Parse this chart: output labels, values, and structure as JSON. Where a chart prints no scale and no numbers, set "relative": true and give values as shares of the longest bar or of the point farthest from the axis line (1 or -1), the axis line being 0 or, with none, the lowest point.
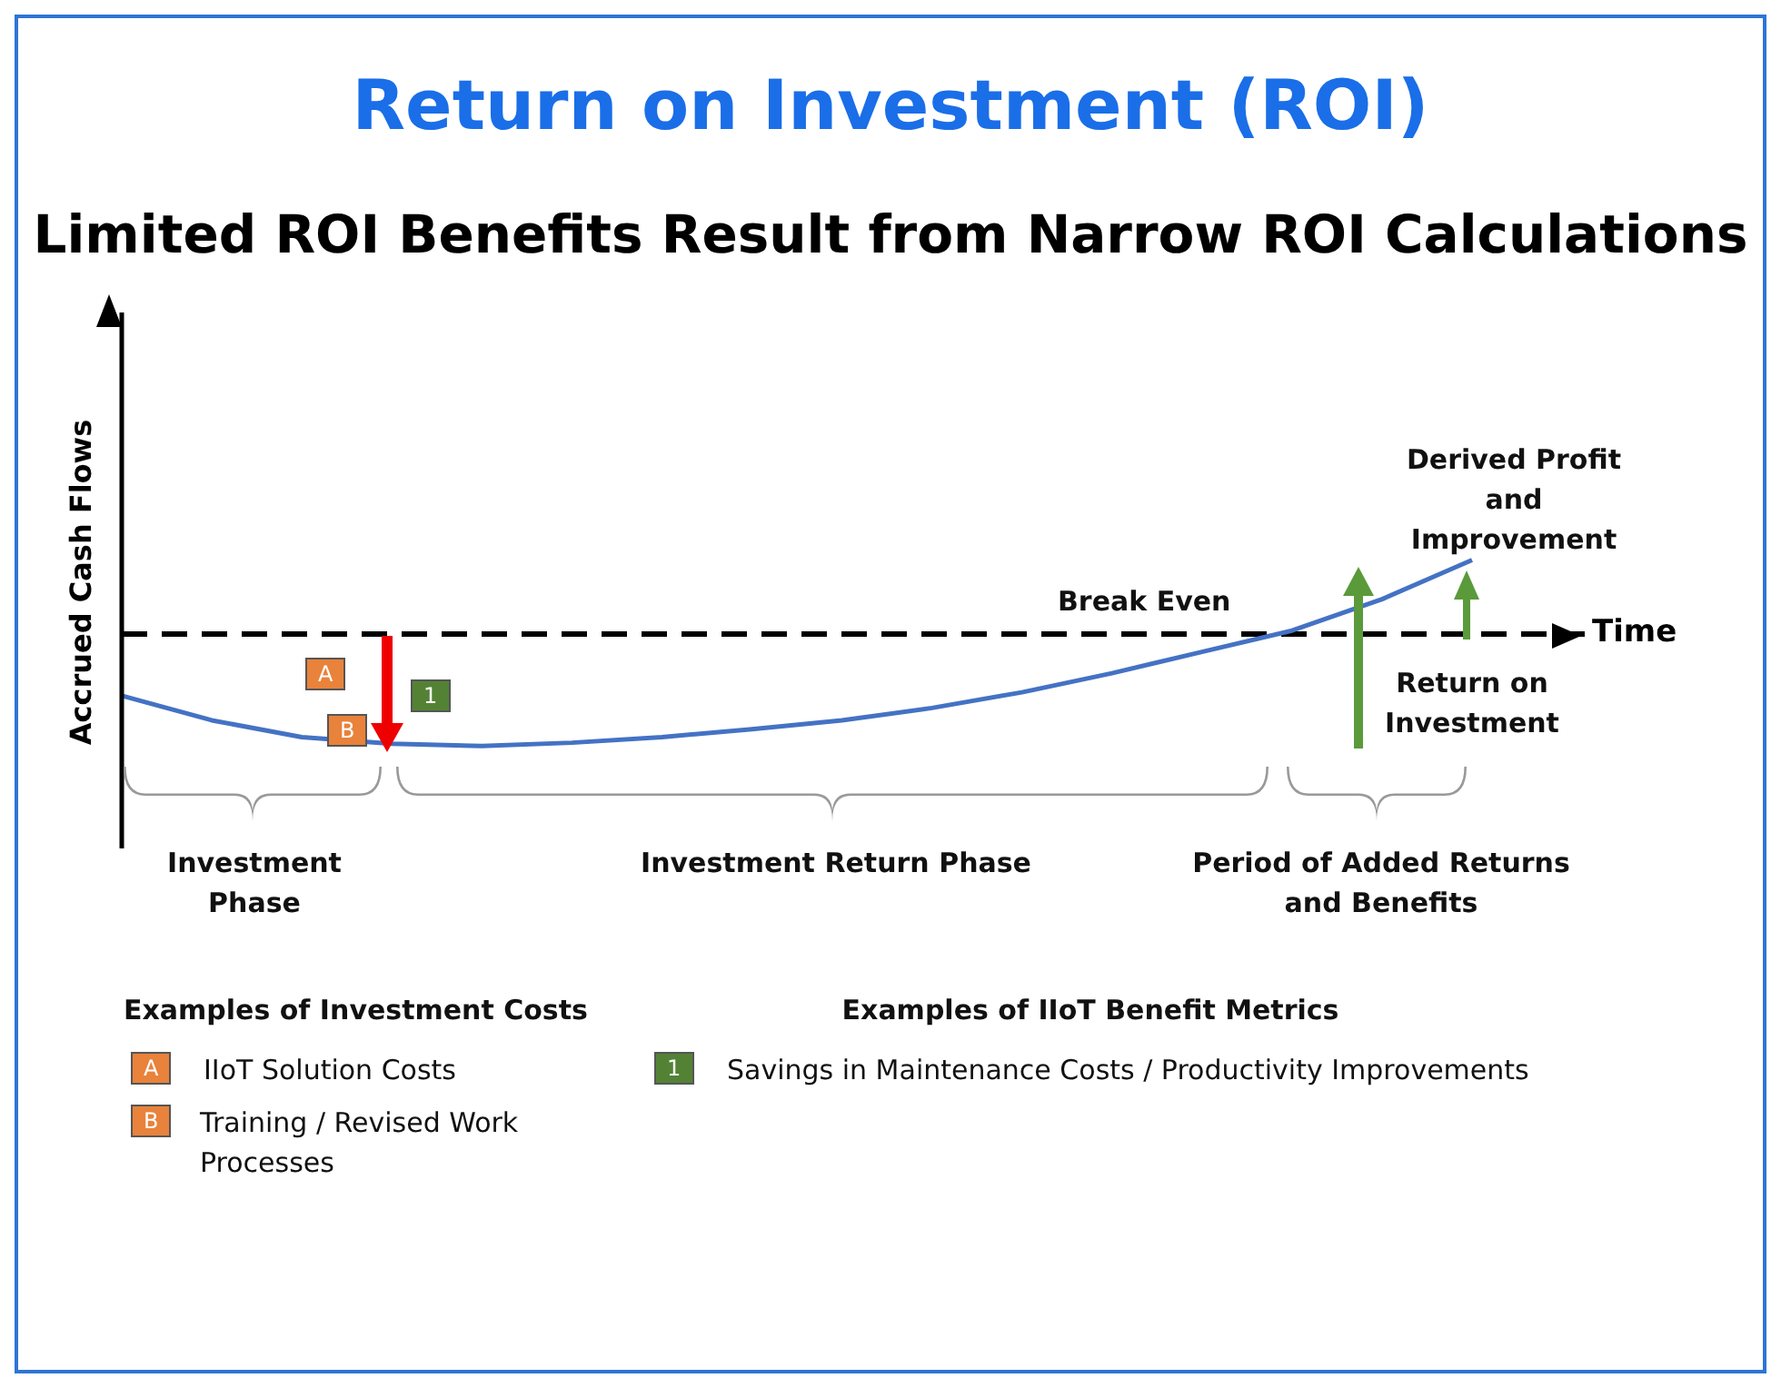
{
  "chart_data": {
    "type": "line",
    "title": "Return on Investment (ROI)",
    "subtitle": "Limited ROI Benefits Result from Narrow ROI Calculations",
    "xlabel": "Time",
    "ylabel": "Accrued Cash Flows",
    "relative": true,
    "marker": "none",
    "categories": [
      null,
      null,
      null,
      null,
      null,
      null,
      null,
      null,
      null,
      null,
      null,
      null,
      null,
      null,
      null,
      null
    ],
    "series": [
      {
        "color": "#4472c4",
        "values": [
          -0.55,
          -0.77,
          -0.92,
          -0.98,
          -1.0,
          -0.97,
          -0.92,
          -0.85,
          -0.77,
          -0.66,
          -0.52,
          -0.35,
          -0.16,
          0.03,
          0.31,
          0.66
        ]
      }
    ],
    "ref_lines": [
      {
        "axis": "y",
        "value": 0,
        "label": null,
        "color": "#000000",
        "line_style": "dashed"
      }
    ],
    "annotations": [
      "Break Even",
      "Derived Profit and Improvement",
      "Return on Investment",
      "Investment Phase",
      "Investment Return Phase",
      "Period of Added Returns and Benefits",
      "Examples of Investment Costs",
      "A",
      "IIoT Solution Costs",
      "B",
      "Training / Revised Work Processes",
      "Examples of IIoT Benefit Metrics",
      "1",
      "Savings in Maintenance Costs / Productivity Improvements",
      "A",
      "B",
      "1"
    ]
  }
}
